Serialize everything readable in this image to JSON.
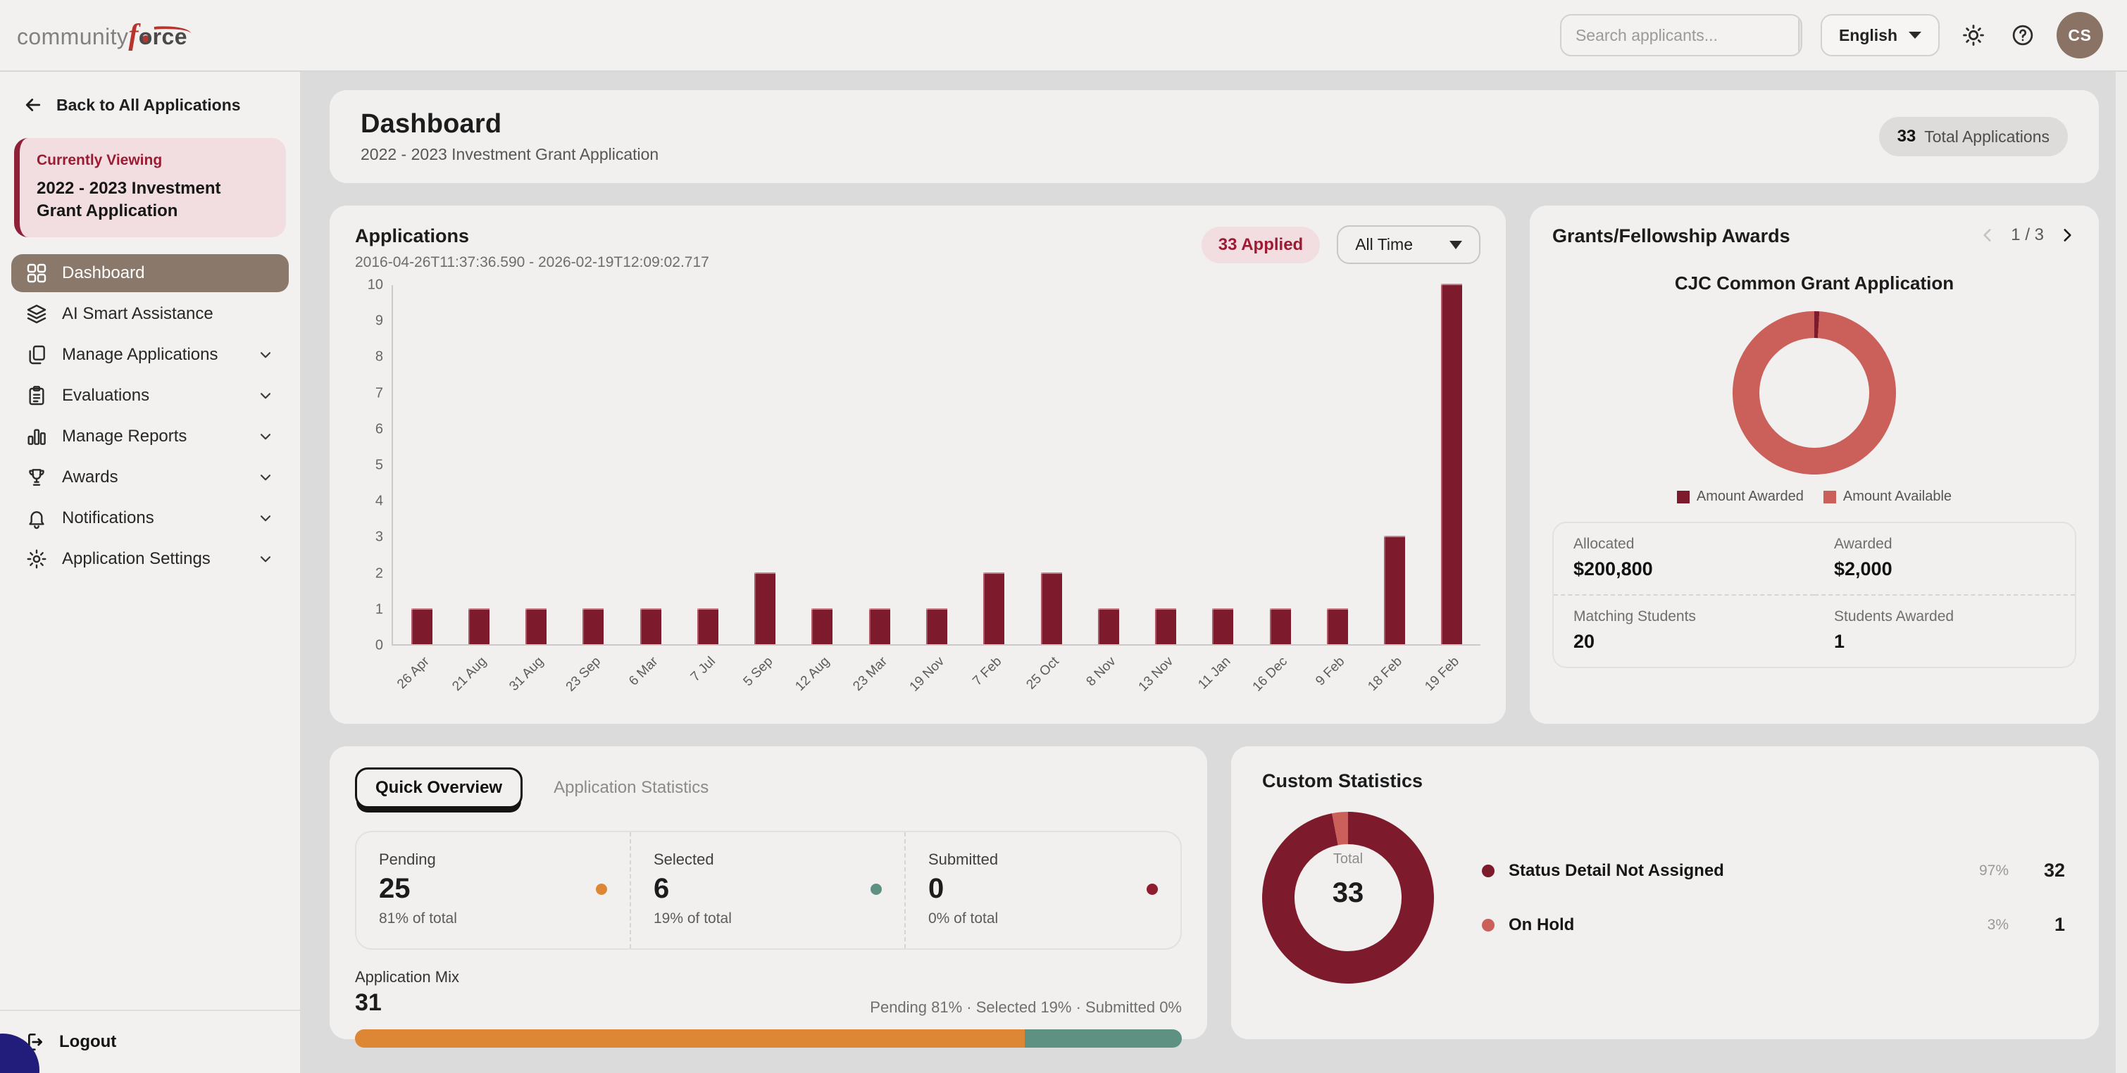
{
  "brand": {
    "name_gray": "community",
    "name_accent": "f",
    "name_dark_o": "o",
    "name_dark_rest": "rce"
  },
  "topbar": {
    "search_placeholder": "Search applicants...",
    "language_label": "English",
    "avatar_initials": "CS",
    "icons": [
      "search-icon",
      "sun-icon",
      "help-icon"
    ]
  },
  "sidebar": {
    "back_label": "Back to All Applications",
    "currently_viewing_label": "Currently Viewing",
    "current_application": "2022 - 2023 Investment Grant Application",
    "items": [
      {
        "label": "Dashboard",
        "icon": "grid-icon",
        "active": true,
        "expandable": false
      },
      {
        "label": "AI Smart Assistance",
        "icon": "layers-icon",
        "active": false,
        "expandable": false
      },
      {
        "label": "Manage Applications",
        "icon": "documents-icon",
        "active": false,
        "expandable": true
      },
      {
        "label": "Evaluations",
        "icon": "clipboard-icon",
        "active": false,
        "expandable": true
      },
      {
        "label": "Manage Reports",
        "icon": "bar-chart-icon",
        "active": false,
        "expandable": true
      },
      {
        "label": "Awards",
        "icon": "trophy-icon",
        "active": false,
        "expandable": true
      },
      {
        "label": "Notifications",
        "icon": "bell-icon",
        "active": false,
        "expandable": true
      },
      {
        "label": "Application Settings",
        "icon": "gear-icon",
        "active": false,
        "expandable": true
      }
    ],
    "logout_label": "Logout"
  },
  "header": {
    "title": "Dashboard",
    "subtitle": "2022 - 2023 Investment Grant Application",
    "total_count": "33",
    "total_label": "Total Applications"
  },
  "applications_panel": {
    "title": "Applications",
    "date_range": "2016-04-26T11:37:36.590 - 2026-02-19T12:09:02.717",
    "applied_badge": "33 Applied",
    "time_filter": "All Time"
  },
  "grants_panel": {
    "title": "Grants/Fellowship Awards",
    "pagination": "1 / 3",
    "stats": [
      {
        "label": "Allocated",
        "value": "$200,800"
      },
      {
        "label": "Awarded",
        "value": "$2,000"
      },
      {
        "label": "Matching Students",
        "value": "20"
      },
      {
        "label": "Students Awarded",
        "value": "1"
      }
    ]
  },
  "overview_panel": {
    "tabs": [
      "Quick Overview",
      "Application Statistics"
    ],
    "active_tab": "Quick Overview",
    "stats": [
      {
        "label": "Pending",
        "value": "25",
        "pct": "81% of total",
        "color": "#dd8633"
      },
      {
        "label": "Selected",
        "value": "6",
        "pct": "19% of total",
        "color": "#5f9183"
      },
      {
        "label": "Submitted",
        "value": "0",
        "pct": "0% of total",
        "color": "#8e1d30"
      }
    ],
    "application_mix": {
      "label": "Application Mix",
      "total": "31",
      "summary": "Pending 81% · Selected 19% · Submitted 0%",
      "segments": [
        {
          "name": "Pending",
          "pct": 81,
          "color": "#dd8633"
        },
        {
          "name": "Selected",
          "pct": 19,
          "color": "#5f9183"
        }
      ]
    }
  },
  "custom_panel": {
    "title": "Custom Statistics"
  },
  "chart_data": [
    {
      "type": "bar",
      "title": "Applications",
      "categories": [
        "26 Apr",
        "21 Aug",
        "31 Aug",
        "23 Sep",
        "6 Mar",
        "7 Jul",
        "5 Sep",
        "12 Aug",
        "23 Mar",
        "19 Nov",
        "7 Feb",
        "25 Oct",
        "8 Nov",
        "13 Nov",
        "11 Jan",
        "16 Dec",
        "9 Feb",
        "18 Feb",
        "19 Feb"
      ],
      "values": [
        1,
        1,
        1,
        1,
        1,
        1,
        2,
        1,
        1,
        1,
        2,
        2,
        1,
        1,
        1,
        1,
        1,
        3,
        10
      ],
      "ylim": [
        0,
        10
      ],
      "ytick_step": 1,
      "bar_color": "#7d1a2c",
      "grid": false,
      "xlabel": "",
      "ylabel": ""
    },
    {
      "type": "pie",
      "title": "CJC Common Grant Application",
      "labels": [
        "Amount Awarded",
        "Amount Available"
      ],
      "values": [
        2000,
        200800
      ],
      "colors": [
        "#7d1a2c",
        "#cb5f5a"
      ],
      "legend_position": "bottom"
    },
    {
      "type": "pie",
      "title": "Custom Statistics",
      "center_label": "Total",
      "center_value": "33",
      "labels": [
        "Status Detail Not Assigned",
        "On Hold"
      ],
      "values": [
        32,
        1
      ],
      "pcts": [
        "97%",
        "3%"
      ],
      "colors": [
        "#7d1a2c",
        "#cb5f5a"
      ],
      "legend_position": "right"
    }
  ]
}
